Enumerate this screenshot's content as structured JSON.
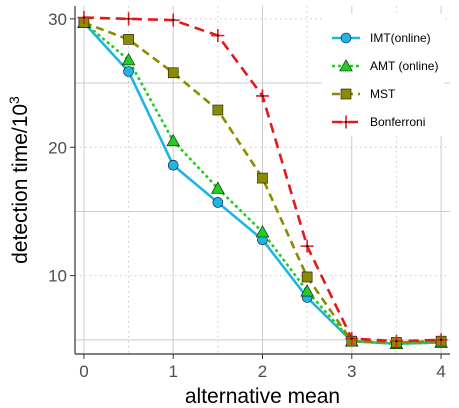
{
  "chart_data": {
    "type": "line",
    "title": "",
    "xlabel": "alternative mean",
    "ylabel": "detection time/10",
    "ylabel_superscript": "3",
    "xlim": [
      -0.1,
      4.1
    ],
    "ylim": [
      3.9,
      31.0
    ],
    "x_ticks": [
      0,
      1,
      2,
      3,
      4
    ],
    "x_tick_labels": [
      "0",
      "1",
      "2",
      "3",
      "4"
    ],
    "y_ticks": [
      10,
      20,
      30
    ],
    "y_tick_labels": [
      "10",
      "20",
      "30"
    ],
    "grid": true,
    "legend_position": "top-right",
    "x": [
      0,
      0.5,
      1,
      1.5,
      2,
      2.5,
      3,
      3.5,
      4
    ],
    "series": [
      {
        "name": "IMT(online)",
        "color": "#1fb4e6",
        "marker": "circle",
        "dash": "solid",
        "values": [
          29.7,
          25.9,
          18.6,
          15.7,
          12.8,
          8.3,
          4.9,
          4.7,
          4.8
        ]
      },
      {
        "name": "AMT (online)",
        "color": "#22cc22",
        "marker": "triangle",
        "dash": "dotted",
        "values": [
          29.7,
          26.8,
          20.5,
          16.8,
          13.4,
          8.8,
          4.9,
          4.7,
          4.8
        ]
      },
      {
        "name": "MST",
        "color": "#8b8b00",
        "marker": "square",
        "dash": "dashed",
        "values": [
          29.7,
          28.4,
          25.8,
          22.9,
          17.6,
          9.9,
          4.9,
          4.8,
          4.9
        ]
      },
      {
        "name": "Bonferroni",
        "color": "#e31a1c",
        "marker": "plus",
        "dash": "longdash",
        "values": [
          30.1,
          30.0,
          29.9,
          28.7,
          24.0,
          12.3,
          5.1,
          4.9,
          5.0
        ]
      }
    ]
  }
}
